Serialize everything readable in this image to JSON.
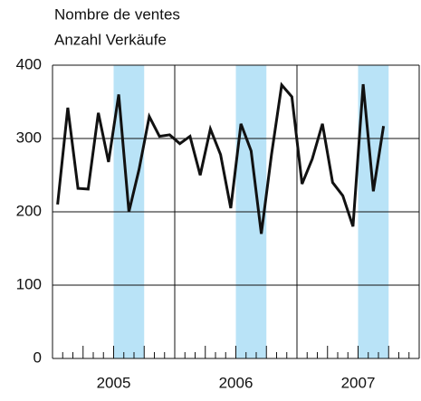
{
  "chart_data": {
    "type": "line",
    "y_axis_title": [
      "Nombre de ventes",
      "Anzahl Verkäufe"
    ],
    "categories": [
      null,
      null,
      null,
      null,
      null,
      null,
      null,
      null,
      null,
      null,
      null,
      null,
      null,
      null,
      null,
      null,
      null,
      null,
      null,
      null,
      null,
      null,
      null,
      null,
      null,
      null,
      null,
      null,
      null,
      null,
      null,
      null,
      null
    ],
    "years": [
      "2005",
      "2006",
      "2007"
    ],
    "series": [
      {
        "name": null,
        "color": "#111111",
        "values": [
          210,
          342,
          232,
          231,
          335,
          268,
          360,
          200,
          258,
          330,
          303,
          305,
          293,
          303,
          250,
          313,
          278,
          205,
          320,
          283,
          170,
          278,
          373,
          357,
          238,
          272,
          320,
          240,
          222,
          180,
          374,
          228,
          317
        ]
      }
    ],
    "ylim": [
      0,
      400
    ],
    "yticks": [
      0,
      100,
      200,
      300,
      400
    ],
    "grid": true,
    "highlight_color": "#b9e3f7"
  }
}
